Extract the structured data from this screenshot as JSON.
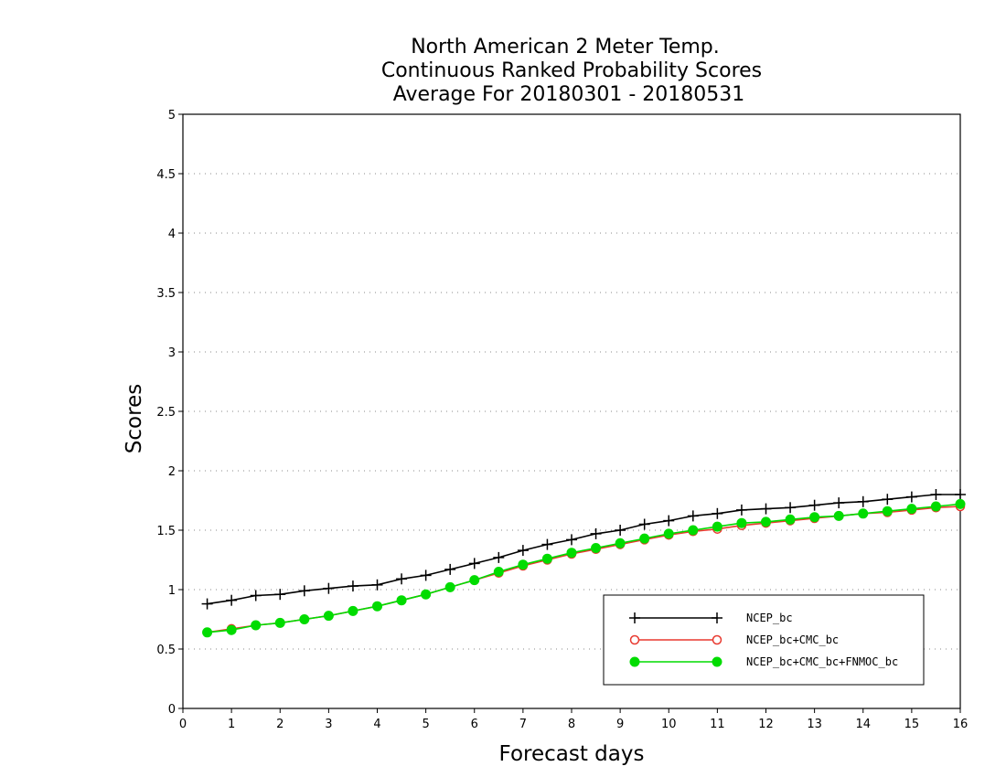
{
  "chart_data": {
    "type": "line",
    "title": [
      "North American 2 Meter Temp.",
      "Continuous Ranked Probability Scores",
      "Average For 20180301 - 20180531"
    ],
    "xlabel": "Forecast days",
    "ylabel": "Scores",
    "xlim": [
      0,
      16
    ],
    "ylim": [
      0,
      5
    ],
    "x_ticks": [
      "0",
      "1",
      "2",
      "3",
      "4",
      "5",
      "6",
      "7",
      "8",
      "9",
      "10",
      "11",
      "12",
      "13",
      "14",
      "15",
      "16"
    ],
    "y_ticks": [
      "0",
      "0.5",
      "1",
      "1.5",
      "2",
      "2.5",
      "3",
      "3.5",
      "4",
      "4.5",
      "5"
    ],
    "grid": "horizontal-dotted",
    "legend_position": "bottom-right",
    "x": [
      0.5,
      1,
      1.5,
      2,
      2.5,
      3,
      3.5,
      4,
      4.5,
      5,
      5.5,
      6,
      6.5,
      7,
      7.5,
      8,
      8.5,
      9,
      9.5,
      10,
      10.5,
      11,
      11.5,
      12,
      12.5,
      13,
      13.5,
      14,
      14.5,
      15,
      15.5,
      16
    ],
    "series": [
      {
        "name": "NCEP_bc",
        "color": "#000000",
        "marker": "plus",
        "values": [
          0.88,
          0.91,
          0.95,
          0.96,
          0.99,
          1.01,
          1.03,
          1.04,
          1.09,
          1.12,
          1.17,
          1.22,
          1.27,
          1.33,
          1.38,
          1.42,
          1.47,
          1.5,
          1.55,
          1.58,
          1.62,
          1.64,
          1.67,
          1.68,
          1.69,
          1.71,
          1.73,
          1.74,
          1.76,
          1.78,
          1.8,
          1.8
        ]
      },
      {
        "name": "NCEP_bc+CMC_bc",
        "color": "#e8392f",
        "marker": "open-circle",
        "values": [
          0.64,
          0.67,
          0.7,
          0.72,
          0.75,
          0.78,
          0.82,
          0.86,
          0.91,
          0.96,
          1.02,
          1.08,
          1.14,
          1.2,
          1.25,
          1.3,
          1.34,
          1.38,
          1.42,
          1.46,
          1.49,
          1.51,
          1.54,
          1.56,
          1.58,
          1.6,
          1.62,
          1.64,
          1.65,
          1.67,
          1.69,
          1.7
        ]
      },
      {
        "name": "NCEP_bc+CMC_bc+FNMOC_bc",
        "color": "#00dc00",
        "marker": "filled-circle",
        "values": [
          0.64,
          0.66,
          0.7,
          0.72,
          0.75,
          0.78,
          0.82,
          0.86,
          0.91,
          0.96,
          1.02,
          1.08,
          1.15,
          1.21,
          1.26,
          1.31,
          1.35,
          1.39,
          1.43,
          1.47,
          1.5,
          1.53,
          1.56,
          1.57,
          1.59,
          1.61,
          1.62,
          1.64,
          1.66,
          1.68,
          1.7,
          1.72
        ]
      }
    ]
  }
}
